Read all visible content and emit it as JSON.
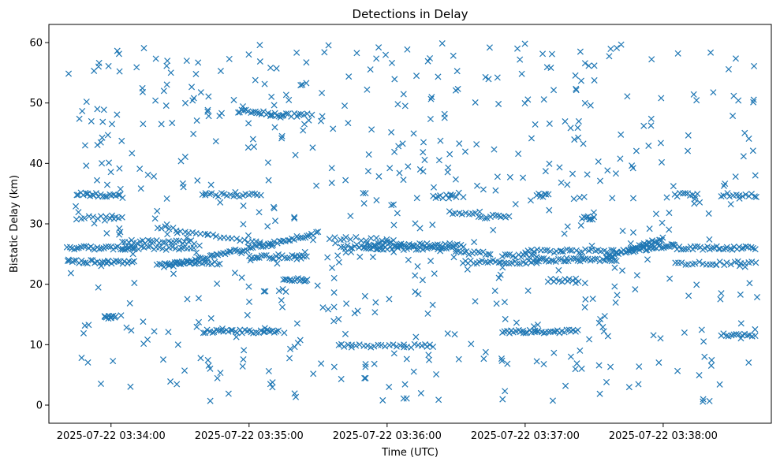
{
  "chart_data": {
    "type": "scatter",
    "title": "Detections in Delay",
    "xlabel": "Time (UTC)",
    "ylabel": "Bistatic Delay (km)",
    "marker": "x",
    "color": "#1f77b4",
    "grid": false,
    "legend": "none",
    "x_start": "2025-07-22 03:33:41",
    "x_end": "2025-07-22 03:38:41",
    "xlim": [
      "2025-07-22 03:33:33",
      "2025-07-22 03:38:47"
    ],
    "ylim": [
      -3,
      63
    ],
    "xticks": [
      "2025-07-22 03:34:00",
      "2025-07-22 03:35:00",
      "2025-07-22 03:36:00",
      "2025-07-22 03:37:00",
      "2025-07-22 03:38:00"
    ],
    "yticks": [
      0,
      10,
      20,
      30,
      40,
      50,
      60
    ],
    "tracks": [
      {
        "x": [
          "2025-07-22 03:33:41",
          "2025-07-22 03:34:10"
        ],
        "y": [
          26.0,
          26.0
        ],
        "n": 30
      },
      {
        "x": [
          "2025-07-22 03:33:41",
          "2025-07-22 03:34:10"
        ],
        "y": [
          23.7,
          23.7
        ],
        "n": 30
      },
      {
        "x": [
          "2025-07-22 03:33:45",
          "2025-07-22 03:34:05"
        ],
        "y": [
          35.0,
          34.5
        ],
        "n": 22
      },
      {
        "x": [
          "2025-07-22 03:33:45",
          "2025-07-22 03:34:05"
        ],
        "y": [
          31.0,
          31.0
        ],
        "n": 12
      },
      {
        "x": [
          "2025-07-22 03:34:05",
          "2025-07-22 03:34:36"
        ],
        "y": [
          27.0,
          27.0
        ],
        "n": 26
      },
      {
        "x": [
          "2025-07-22 03:34:05",
          "2025-07-22 03:34:36"
        ],
        "y": [
          26.0,
          26.0
        ],
        "n": 24
      },
      {
        "x": [
          "2025-07-22 03:34:20",
          "2025-07-22 03:34:47"
        ],
        "y": [
          23.5,
          23.5
        ],
        "n": 26
      },
      {
        "x": [
          "2025-07-22 03:34:25",
          "2025-07-22 03:35:30"
        ],
        "y": [
          23.0,
          28.5
        ],
        "n": 70
      },
      {
        "x": [
          "2025-07-22 03:34:40",
          "2025-07-22 03:35:05"
        ],
        "y": [
          34.8,
          34.8
        ],
        "n": 20
      },
      {
        "x": [
          "2025-07-22 03:34:20",
          "2025-07-22 03:35:10"
        ],
        "y": [
          29.5,
          26.5
        ],
        "n": 30
      },
      {
        "x": [
          "2025-07-22 03:35:00",
          "2025-07-22 03:35:25"
        ],
        "y": [
          24.5,
          24.5
        ],
        "n": 24
      },
      {
        "x": [
          "2025-07-22 03:35:15",
          "2025-07-22 03:35:25"
        ],
        "y": [
          20.8,
          20.8
        ],
        "n": 14
      },
      {
        "x": [
          "2025-07-22 03:34:55",
          "2025-07-22 03:35:15"
        ],
        "y": [
          48.7,
          48.0
        ],
        "n": 22
      },
      {
        "x": [
          "2025-07-22 03:35:15",
          "2025-07-22 03:35:25"
        ],
        "y": [
          48.0,
          48.0
        ],
        "n": 10
      },
      {
        "x": [
          "2025-07-22 03:34:40",
          "2025-07-22 03:35:13"
        ],
        "y": [
          12.2,
          12.2
        ],
        "n": 34
      },
      {
        "x": [
          "2025-07-22 03:33:57",
          "2025-07-22 03:34:02"
        ],
        "y": [
          14.5,
          14.5
        ],
        "n": 10
      },
      {
        "x": [
          "2025-07-22 03:35:40",
          "2025-07-22 03:36:03"
        ],
        "y": [
          26.0,
          27.0
        ],
        "n": 24
      },
      {
        "x": [
          "2025-07-22 03:35:35",
          "2025-07-22 03:36:00"
        ],
        "y": [
          27.5,
          27.5
        ],
        "n": 12
      },
      {
        "x": [
          "2025-07-22 03:35:50",
          "2025-07-22 03:36:30"
        ],
        "y": [
          26.0,
          26.0
        ],
        "n": 40
      },
      {
        "x": [
          "2025-07-22 03:36:03",
          "2025-07-22 03:36:33"
        ],
        "y": [
          26.5,
          26.5
        ],
        "n": 28
      },
      {
        "x": [
          "2025-07-22 03:35:40",
          "2025-07-22 03:36:20"
        ],
        "y": [
          9.8,
          9.8
        ],
        "n": 26
      },
      {
        "x": [
          "2025-07-22 03:36:20",
          "2025-07-22 03:36:30"
        ],
        "y": [
          34.5,
          34.5
        ],
        "n": 10
      },
      {
        "x": [
          "2025-07-22 03:36:27",
          "2025-07-22 03:36:40"
        ],
        "y": [
          31.8,
          31.8
        ],
        "n": 10
      },
      {
        "x": [
          "2025-07-22 03:36:33",
          "2025-07-22 03:37:05"
        ],
        "y": [
          23.7,
          23.7
        ],
        "n": 28
      },
      {
        "x": [
          "2025-07-22 03:36:30",
          "2025-07-22 03:36:45"
        ],
        "y": [
          25.2,
          25.2
        ],
        "n": 14
      },
      {
        "x": [
          "2025-07-22 03:36:40",
          "2025-07-22 03:36:53"
        ],
        "y": [
          31.2,
          31.2
        ],
        "n": 12
      },
      {
        "x": [
          "2025-07-22 03:36:50",
          "2025-07-22 03:37:23"
        ],
        "y": [
          12.2,
          12.2
        ],
        "n": 34
      },
      {
        "x": [
          "2025-07-22 03:36:50",
          "2025-07-22 03:37:05"
        ],
        "y": [
          24.7,
          24.7
        ],
        "n": 14
      },
      {
        "x": [
          "2025-07-22 03:37:05",
          "2025-07-22 03:37:10"
        ],
        "y": [
          34.7,
          34.7
        ],
        "n": 8
      },
      {
        "x": [
          "2025-07-22 03:37:10",
          "2025-07-22 03:37:23"
        ],
        "y": [
          20.7,
          20.7
        ],
        "n": 12
      },
      {
        "x": [
          "2025-07-22 03:37:00",
          "2025-07-22 03:37:40"
        ],
        "y": [
          25.5,
          25.5
        ],
        "n": 30
      },
      {
        "x": [
          "2025-07-22 03:37:05",
          "2025-07-22 03:37:40"
        ],
        "y": [
          24.0,
          24.0
        ],
        "n": 34
      },
      {
        "x": [
          "2025-07-22 03:37:25",
          "2025-07-22 03:37:30"
        ],
        "y": [
          31.0,
          31.0
        ],
        "n": 8
      },
      {
        "x": [
          "2025-07-22 03:37:35",
          "2025-07-22 03:38:00"
        ],
        "y": [
          24.5,
          27.5
        ],
        "n": 40
      },
      {
        "x": [
          "2025-07-22 03:37:45",
          "2025-07-22 03:38:05"
        ],
        "y": [
          25.5,
          26.5
        ],
        "n": 26
      },
      {
        "x": [
          "2025-07-22 03:38:05",
          "2025-07-22 03:38:40"
        ],
        "y": [
          26.0,
          26.0
        ],
        "n": 36
      },
      {
        "x": [
          "2025-07-22 03:38:05",
          "2025-07-22 03:38:40"
        ],
        "y": [
          23.5,
          23.5
        ],
        "n": 24
      },
      {
        "x": [
          "2025-07-22 03:38:05",
          "2025-07-22 03:38:15"
        ],
        "y": [
          34.8,
          34.8
        ],
        "n": 10
      },
      {
        "x": [
          "2025-07-22 03:38:25",
          "2025-07-22 03:38:40"
        ],
        "y": [
          34.8,
          34.8
        ],
        "n": 12
      },
      {
        "x": [
          "2025-07-22 03:38:25",
          "2025-07-22 03:38:40"
        ],
        "y": [
          11.6,
          11.6
        ],
        "n": 14
      }
    ],
    "scatter_count": 620
  }
}
